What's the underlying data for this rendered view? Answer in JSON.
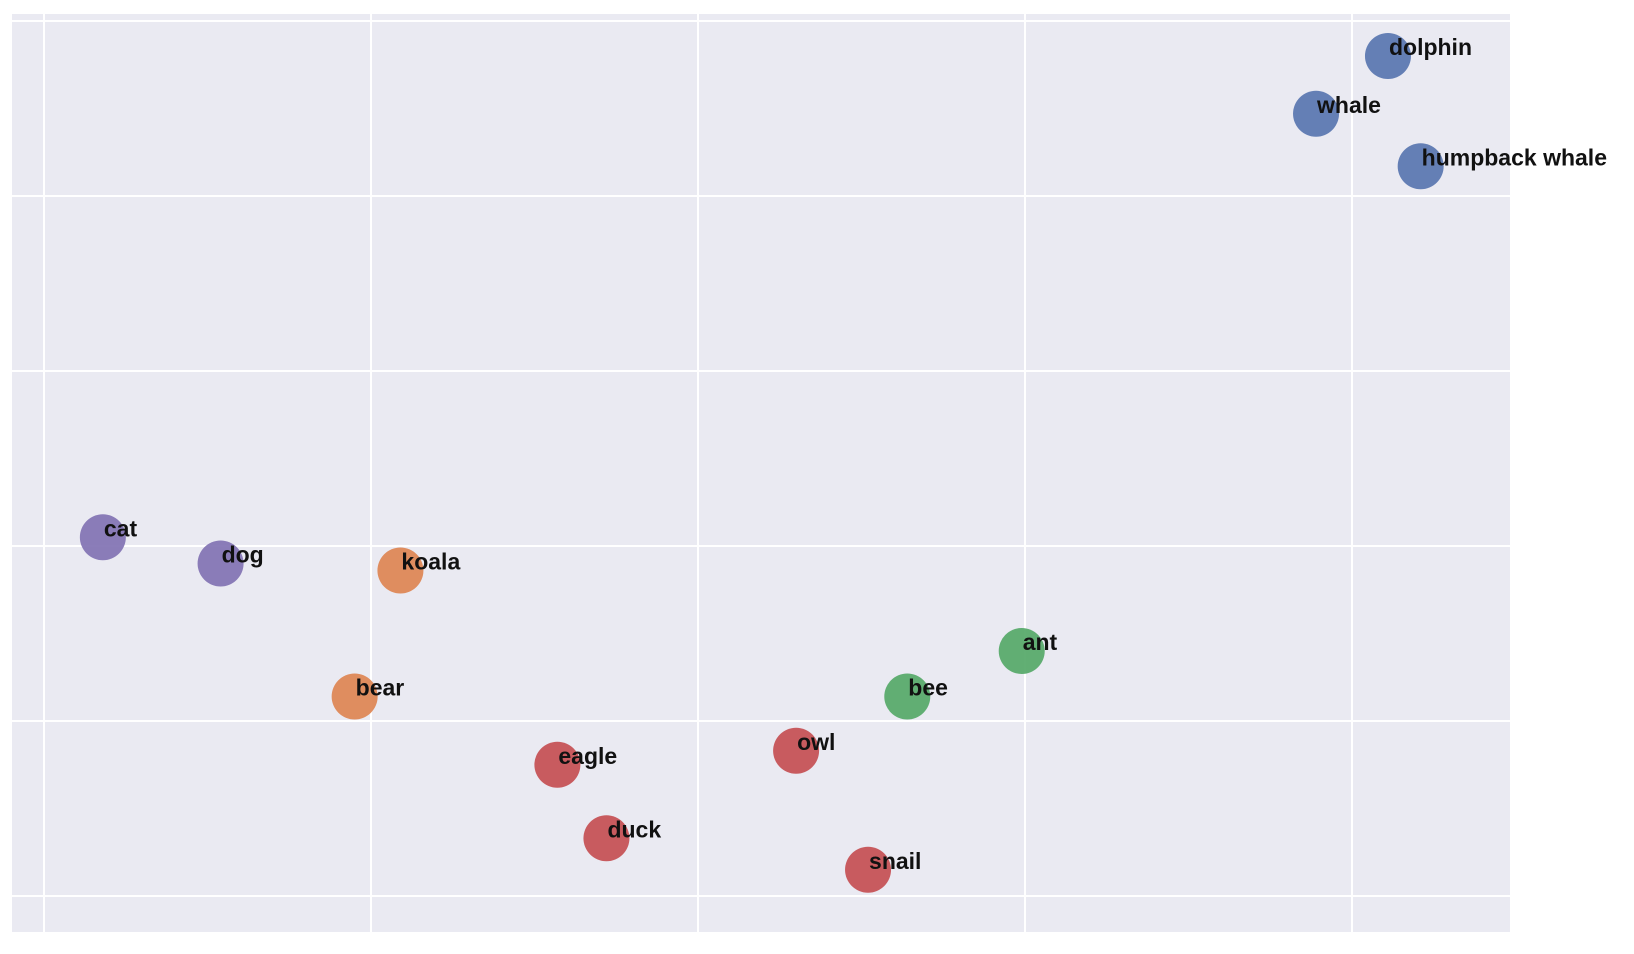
{
  "chart_data": {
    "type": "scatter",
    "title": "",
    "xlabel": "",
    "ylabel": "",
    "grid": true,
    "xlim": [
      -0.1,
      4.5
    ],
    "ylim": [
      -0.2,
      5.0
    ],
    "x_gridlines": [
      0,
      1,
      2,
      3,
      4
    ],
    "y_gridlines": [
      0,
      1,
      2,
      3,
      4,
      5
    ],
    "groups": [
      {
        "color": "#5875B0"
      },
      {
        "color": "#DD8452"
      },
      {
        "color": "#55A868"
      },
      {
        "color": "#C44E52"
      },
      {
        "color": "#8172B3"
      }
    ],
    "points": [
      {
        "label": "dolphin",
        "x": 4.11,
        "y": 4.8,
        "group": 0
      },
      {
        "label": "whale",
        "x": 3.89,
        "y": 4.47,
        "group": 0
      },
      {
        "label": "humpback whale",
        "x": 4.21,
        "y": 4.17,
        "group": 0
      },
      {
        "label": "cat",
        "x": 0.18,
        "y": 2.05,
        "group": 4
      },
      {
        "label": "dog",
        "x": 0.54,
        "y": 1.9,
        "group": 4
      },
      {
        "label": "koala",
        "x": 1.09,
        "y": 1.86,
        "group": 1
      },
      {
        "label": "bear",
        "x": 0.95,
        "y": 1.14,
        "group": 1
      },
      {
        "label": "ant",
        "x": 2.99,
        "y": 1.4,
        "group": 2
      },
      {
        "label": "bee",
        "x": 2.64,
        "y": 1.14,
        "group": 2
      },
      {
        "label": "eagle",
        "x": 1.57,
        "y": 0.75,
        "group": 3
      },
      {
        "label": "owl",
        "x": 2.3,
        "y": 0.83,
        "group": 3
      },
      {
        "label": "duck",
        "x": 1.72,
        "y": 0.33,
        "group": 3
      },
      {
        "label": "snail",
        "x": 2.52,
        "y": 0.15,
        "group": 3
      }
    ]
  }
}
